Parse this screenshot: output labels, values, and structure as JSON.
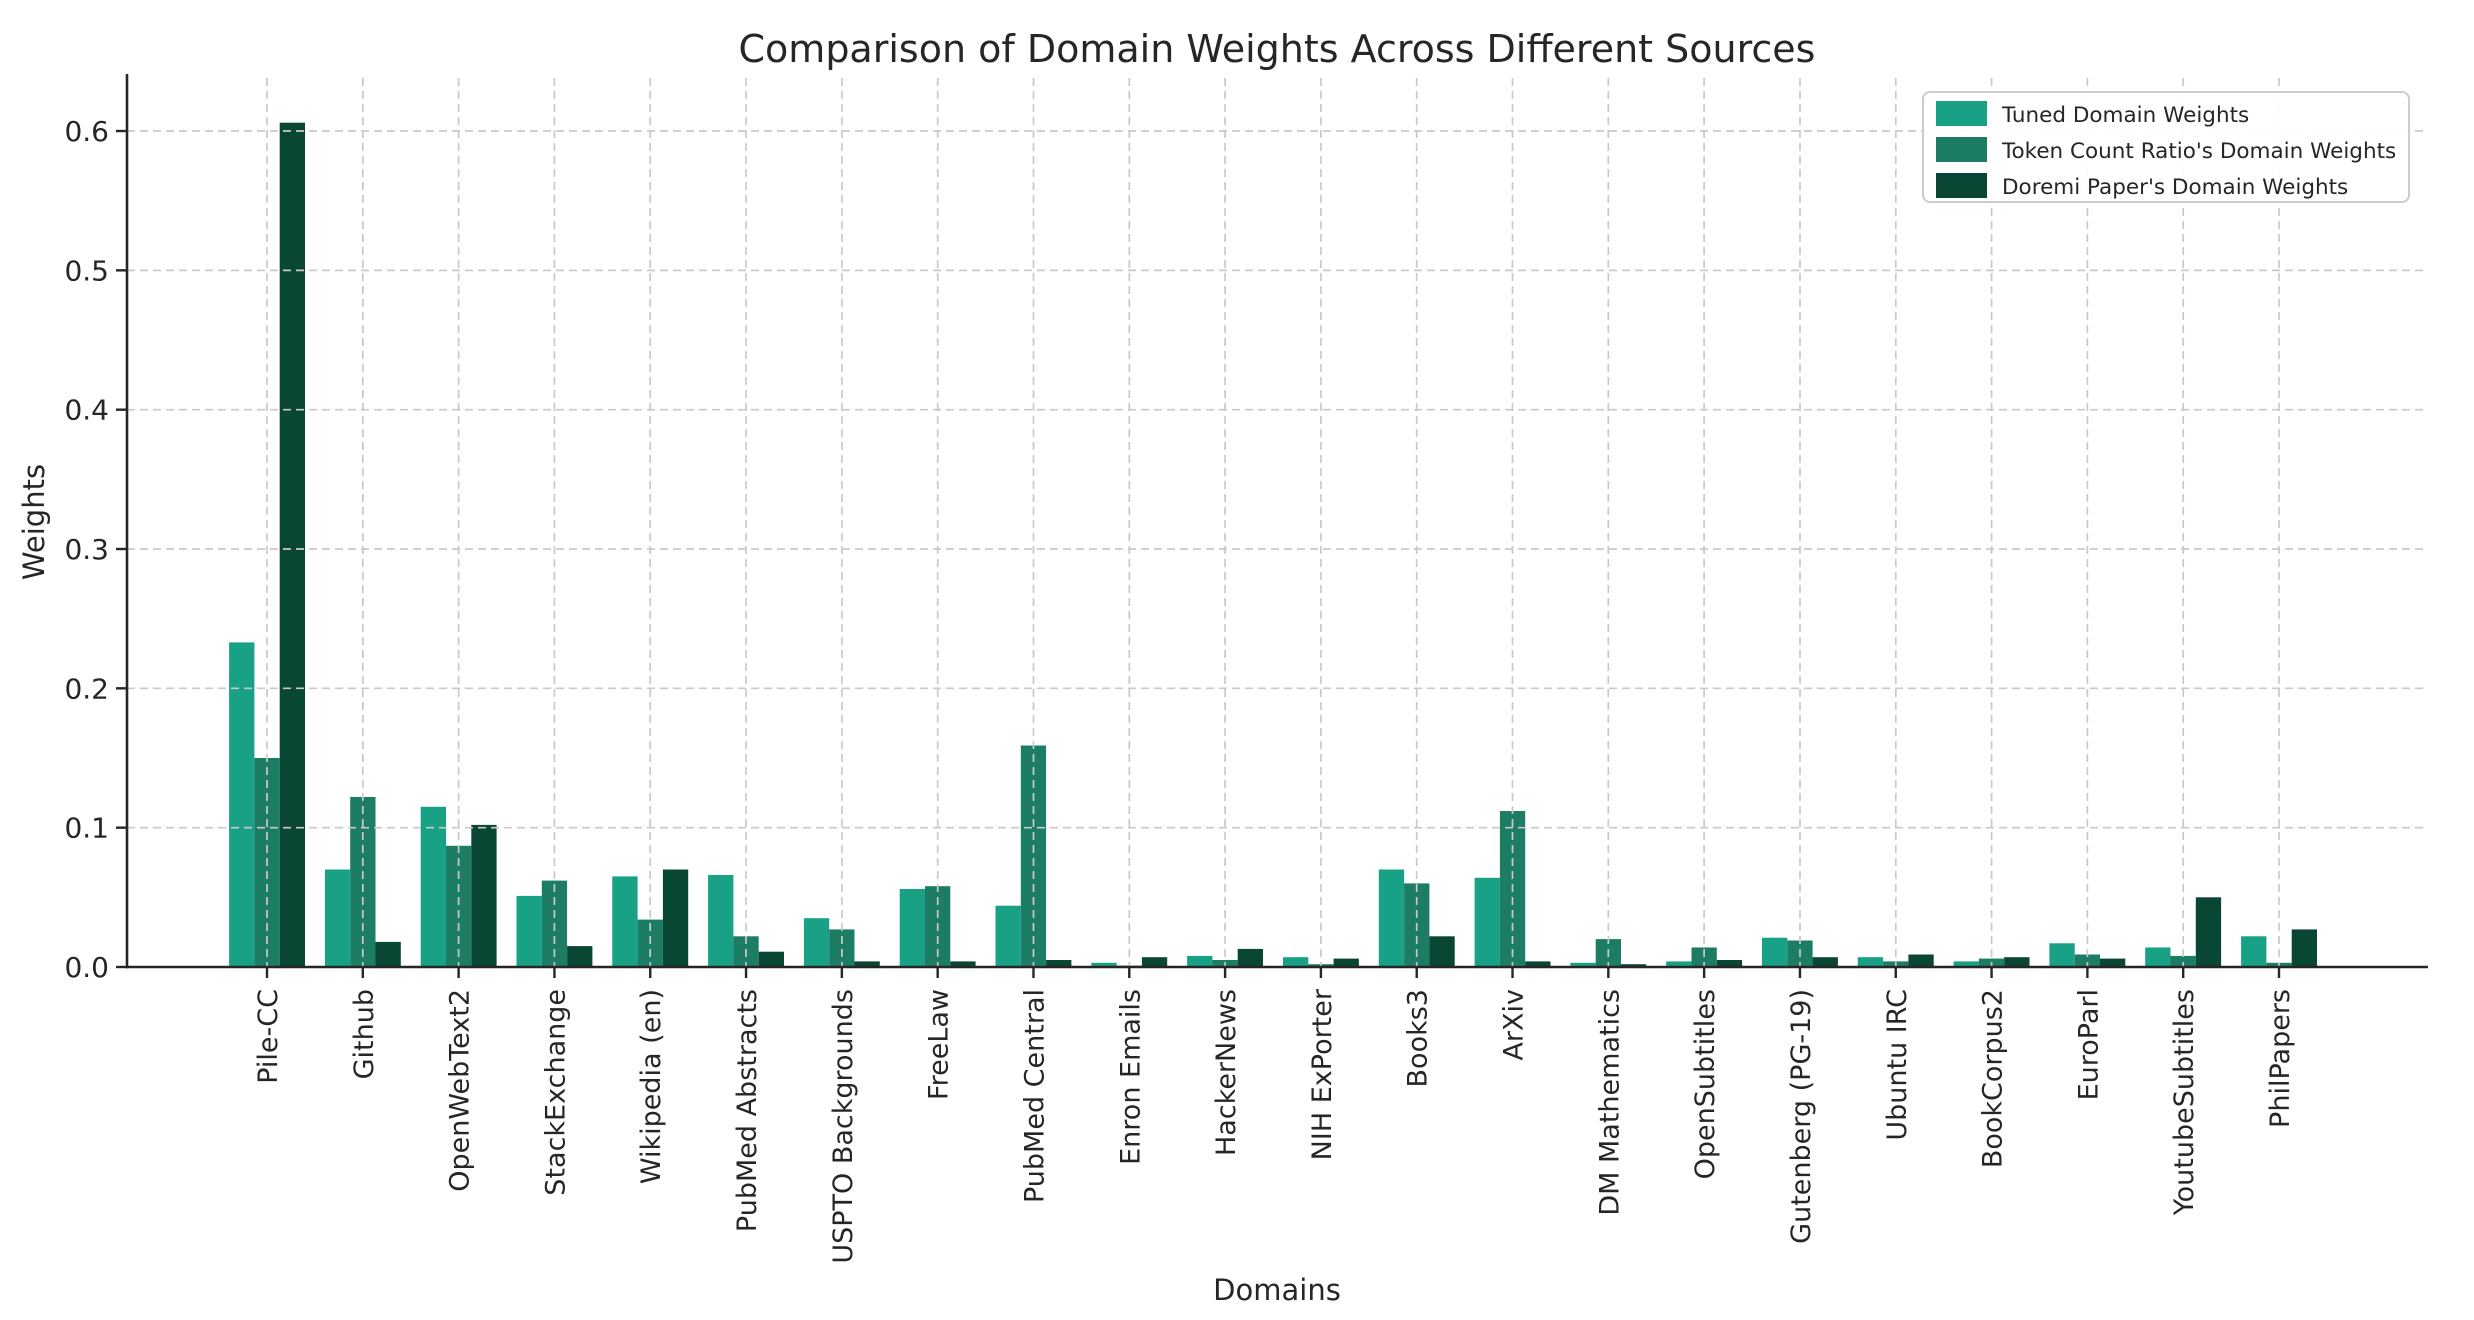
{
  "chart_data": {
    "type": "bar",
    "title": "Comparison of Domain Weights Across Different Sources",
    "xlabel": "Domains",
    "ylabel": "Weights",
    "categories": [
      "Pile-CC",
      "Github",
      "OpenWebText2",
      "StackExchange",
      "Wikipedia (en)",
      "PubMed Abstracts",
      "USPTO Backgrounds",
      "FreeLaw",
      "PubMed Central",
      "Enron Emails",
      "HackerNews",
      "NIH ExPorter",
      "Books3",
      "ArXiv",
      "DM Mathematics",
      "OpenSubtitles",
      "Gutenberg (PG-19)",
      "Ubuntu IRC",
      "BookCorpus2",
      "EuroParl",
      "YoutubeSubtitles",
      "PhilPapers"
    ],
    "series": [
      {
        "name": "Tuned Domain Weights",
        "color": "#19a185",
        "values": [
          0.233,
          0.07,
          0.115,
          0.051,
          0.065,
          0.066,
          0.035,
          0.056,
          0.044,
          0.003,
          0.008,
          0.007,
          0.07,
          0.064,
          0.003,
          0.004,
          0.021,
          0.007,
          0.004,
          0.017,
          0.014,
          0.022
        ]
      },
      {
        "name": "Token Count Ratio's Domain Weights",
        "color": "#1d7d64",
        "values": [
          0.15,
          0.122,
          0.087,
          0.062,
          0.034,
          0.022,
          0.027,
          0.058,
          0.159,
          0.001,
          0.005,
          0.002,
          0.06,
          0.112,
          0.02,
          0.014,
          0.019,
          0.004,
          0.006,
          0.009,
          0.008,
          0.003
        ]
      },
      {
        "name": "Doremi Paper's Domain Weights",
        "color": "#0a4634",
        "values": [
          0.606,
          0.018,
          0.102,
          0.015,
          0.07,
          0.011,
          0.004,
          0.004,
          0.005,
          0.007,
          0.013,
          0.006,
          0.022,
          0.004,
          0.002,
          0.005,
          0.007,
          0.009,
          0.007,
          0.006,
          0.05,
          0.027
        ]
      }
    ],
    "y_ticks": [
      "0.0",
      "0.1",
      "0.2",
      "0.3",
      "0.4",
      "0.5",
      "0.6"
    ],
    "ylim": [
      0,
      0.64
    ],
    "grid": "dashed, drawn over bars",
    "grid_color": "#c9c9c9",
    "legend_position": "upper right",
    "background_color": "#ffffff"
  }
}
